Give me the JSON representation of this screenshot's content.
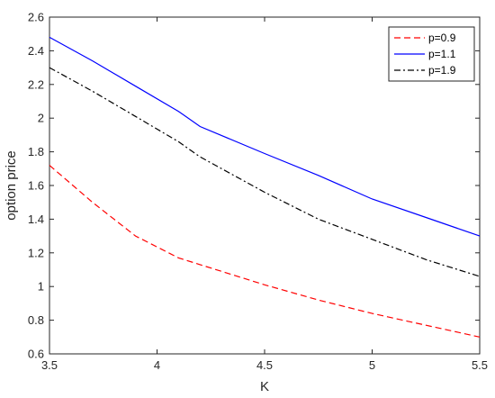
{
  "chart_data": {
    "type": "line",
    "xlabel": "K",
    "ylabel": "option price",
    "xlim": [
      3.5,
      5.5
    ],
    "ylim": [
      0.6,
      2.6
    ],
    "xticks": [
      "3.5",
      "4",
      "4.5",
      "5",
      "5.5"
    ],
    "yticks": [
      "0.6",
      "0.8",
      "1",
      "1.2",
      "1.4",
      "1.6",
      "1.8",
      "2",
      "2.2",
      "2.4",
      "2.6"
    ],
    "grid": false,
    "legend_position": "top-right",
    "x": [
      3.5,
      3.7,
      3.9,
      4.1,
      4.2,
      4.5,
      4.75,
      5.0,
      5.25,
      5.5
    ],
    "series": [
      {
        "name": "p=0.9",
        "color": "#ff0000",
        "dash": "dashed",
        "values": [
          1.72,
          1.5,
          1.3,
          1.17,
          1.13,
          1.01,
          0.92,
          0.84,
          0.77,
          0.7
        ]
      },
      {
        "name": "p=1.1",
        "color": "#0000ff",
        "dash": "solid",
        "values": [
          2.48,
          2.34,
          2.19,
          2.04,
          1.95,
          1.79,
          1.66,
          1.52,
          1.41,
          1.3
        ]
      },
      {
        "name": "p=1.9",
        "color": "#000000",
        "dash": "dashdot",
        "values": [
          2.3,
          2.16,
          2.01,
          1.86,
          1.77,
          1.56,
          1.4,
          1.28,
          1.16,
          1.06
        ]
      }
    ]
  }
}
